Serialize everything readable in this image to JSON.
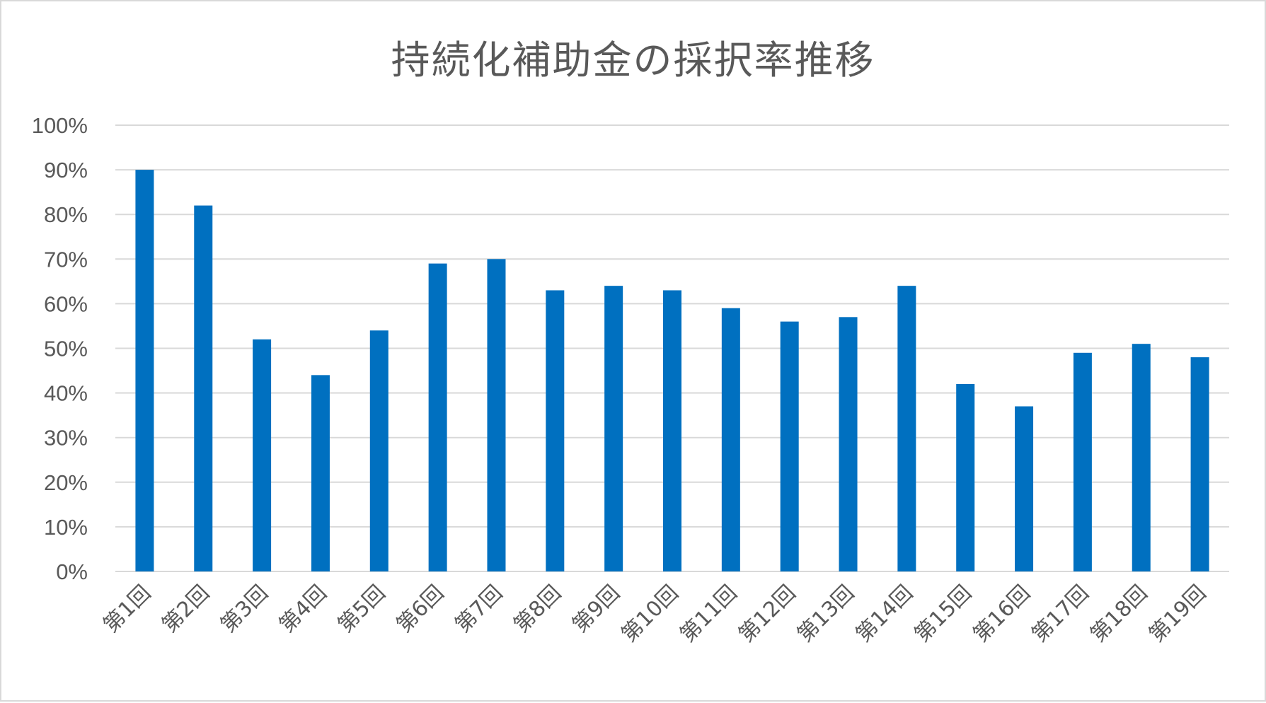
{
  "chart_data": {
    "type": "bar",
    "title": "持続化補助金の採択率推移",
    "xlabel": "",
    "ylabel": "",
    "categories": [
      "第1回",
      "第2回",
      "第3回",
      "第4回",
      "第5回",
      "第6回",
      "第7回",
      "第8回",
      "第9回",
      "第10回",
      "第11回",
      "第12回",
      "第13回",
      "第14回",
      "第15回",
      "第16回",
      "第17回",
      "第18回",
      "第19回"
    ],
    "series": [
      {
        "values": [
          90,
          82,
          52,
          44,
          54,
          69,
          70,
          63,
          64,
          63,
          59,
          56,
          57,
          64,
          42,
          37,
          49,
          51,
          48
        ]
      }
    ],
    "yticks": [
      "0%",
      "10%",
      "20%",
      "30%",
      "40%",
      "50%",
      "60%",
      "70%",
      "80%",
      "90%",
      "100%"
    ],
    "ylim": [
      0,
      100
    ],
    "grid": true,
    "legend": "none",
    "bar_color": "#0070c0",
    "grid_color": "#d9d9d9"
  }
}
